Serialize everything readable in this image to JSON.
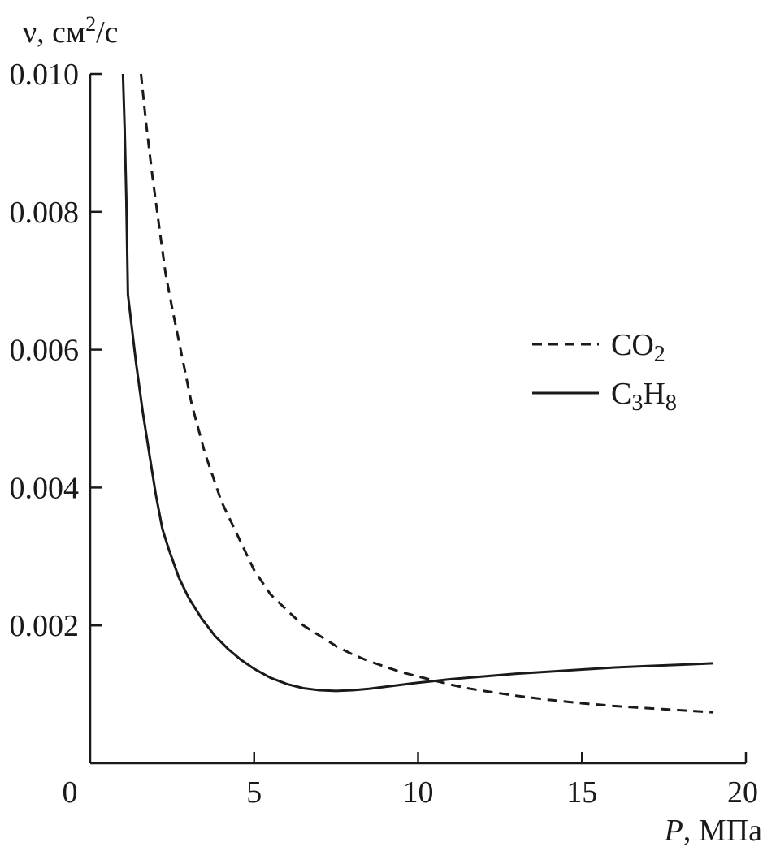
{
  "chart_data": {
    "type": "line",
    "title": "",
    "ylabel": {
      "prefix": "ν, см",
      "sup": "2",
      "suffix": "/с"
    },
    "xlabel": {
      "symbol": "P",
      "unit": ", МПа"
    },
    "xlim": [
      0,
      20
    ],
    "ylim": [
      0,
      0.01
    ],
    "x_ticks": [
      {
        "value": 0,
        "label": "0"
      },
      {
        "value": 5,
        "label": "5"
      },
      {
        "value": 10,
        "label": "10"
      },
      {
        "value": 15,
        "label": "15"
      },
      {
        "value": 20,
        "label": "20"
      }
    ],
    "y_ticks": [
      {
        "value": 0.002,
        "label": "0.002"
      },
      {
        "value": 0.004,
        "label": "0.004"
      },
      {
        "value": 0.006,
        "label": "0.006"
      },
      {
        "value": 0.008,
        "label": "0.008"
      },
      {
        "value": 0.01,
        "label": "0.010"
      }
    ],
    "grid": false,
    "legend_position": "right",
    "series": [
      {
        "name_base": "CO",
        "name_sub": "2",
        "dash": "dashed",
        "color": "#1a1a1a",
        "x": [
          1.55,
          1.7,
          1.9,
          2.1,
          2.3,
          2.5,
          2.8,
          3.1,
          3.5,
          4.0,
          4.5,
          5.0,
          5.5,
          6.0,
          6.5,
          7.0,
          7.5,
          8.0,
          8.5,
          9.0,
          9.5,
          10.0,
          10.5,
          11.0,
          11.5,
          12.0,
          13.0,
          14.0,
          15.0,
          16.0,
          17.0,
          18.0,
          19.0
        ],
        "y": [
          0.01,
          0.0093,
          0.0085,
          0.0078,
          0.0071,
          0.0066,
          0.0059,
          0.0052,
          0.0045,
          0.0038,
          0.0033,
          0.0028,
          0.00245,
          0.00222,
          0.002,
          0.00185,
          0.0017,
          0.00158,
          0.00148,
          0.0014,
          0.00132,
          0.00126,
          0.0012,
          0.00114,
          0.00109,
          0.00105,
          0.00098,
          0.00092,
          0.00087,
          0.00083,
          0.0008,
          0.00077,
          0.00074
        ]
      },
      {
        "name_base": "C",
        "name_sub": "3",
        "name_base2": "H",
        "name_sub2": "8",
        "dash": "solid",
        "color": "#1a1a1a",
        "x": [
          1.0,
          1.05,
          1.1,
          1.15,
          1.25,
          1.4,
          1.6,
          1.8,
          2.0,
          2.2,
          2.4,
          2.7,
          3.0,
          3.4,
          3.8,
          4.2,
          4.6,
          5.0,
          5.5,
          6.0,
          6.5,
          7.0,
          7.5,
          8.0,
          8.5,
          9.0,
          9.5,
          10.0,
          11.0,
          12.0,
          13.0,
          14.0,
          15.0,
          16.0,
          17.0,
          18.0,
          19.0
        ],
        "y": [
          0.01,
          0.0092,
          0.0082,
          0.0068,
          0.0064,
          0.0058,
          0.0051,
          0.0045,
          0.0039,
          0.0034,
          0.0031,
          0.0027,
          0.0024,
          0.0021,
          0.00185,
          0.00166,
          0.0015,
          0.00137,
          0.00124,
          0.00115,
          0.00109,
          0.00106,
          0.00105,
          0.00106,
          0.00108,
          0.00111,
          0.00114,
          0.00117,
          0.00122,
          0.00126,
          0.0013,
          0.00133,
          0.00136,
          0.00139,
          0.00141,
          0.00143,
          0.00145
        ]
      }
    ]
  }
}
